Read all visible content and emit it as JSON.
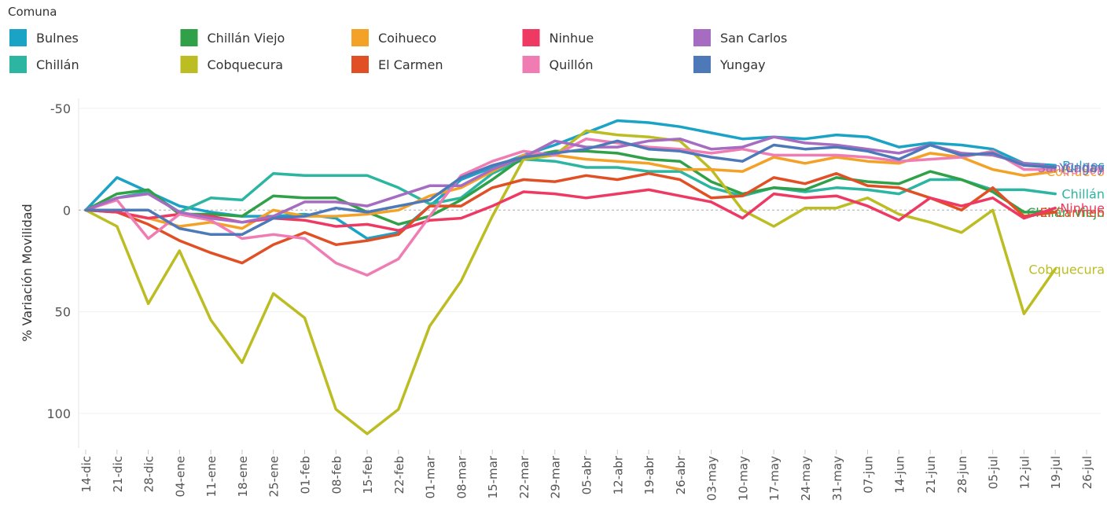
{
  "chart_data": {
    "type": "line",
    "y_label": "% Variación Movilidad",
    "legend_title": "Comuna",
    "legend": "top-left",
    "end_labels": true,
    "grid": true,
    "y_reversed": true,
    "ylim": [
      -55,
      117
    ],
    "yticks": [
      -50,
      0,
      50,
      100
    ],
    "categories": [
      "14-dic",
      "21-dic",
      "28-dic",
      "04-ene",
      "11-ene",
      "18-ene",
      "25-ene",
      "01-feb",
      "08-feb",
      "15-feb",
      "22-feb",
      "01-mar",
      "08-mar",
      "15-mar",
      "22-mar",
      "29-mar",
      "05-abr",
      "12-abr",
      "19-abr",
      "26-abr",
      "03-may",
      "10-may",
      "17-may",
      "24-may",
      "31-may",
      "07-jun",
      "14-jun",
      "21-jun",
      "28-jun",
      "05-jul",
      "12-jul",
      "19-jul",
      "26-jul"
    ],
    "series": [
      {
        "name": "Bulnes",
        "color": "#1ba3c6",
        "values": [
          0,
          -16,
          -9,
          -2,
          1,
          3,
          3,
          2,
          4,
          14,
          11,
          -2,
          -15,
          -21,
          -27,
          -32,
          -38,
          -44,
          -43,
          -41,
          -38,
          -35,
          -36,
          -35,
          -37,
          -36,
          -31,
          -33,
          -32,
          -30,
          -23,
          -22,
          null
        ]
      },
      {
        "name": "Chillán",
        "color": "#2cb5a0",
        "values": [
          0,
          -6,
          -9,
          1,
          -6,
          -5,
          -18,
          -17,
          -17,
          -17,
          -11,
          -3,
          -6,
          -18,
          -25,
          -24,
          -21,
          -21,
          -19,
          -19,
          -11,
          -7,
          -11,
          -9,
          -11,
          -10,
          -8,
          -15,
          -15,
          -10,
          -10,
          -8,
          null
        ]
      },
      {
        "name": "Chillán Viejo",
        "color": "#30a149",
        "values": [
          0,
          -8,
          -10,
          2,
          2,
          3,
          -7,
          -6,
          -6,
          1,
          7,
          3,
          -5,
          -15,
          -26,
          -29,
          -29,
          -28,
          -25,
          -24,
          -14,
          -8,
          -11,
          -10,
          -16,
          -14,
          -13,
          -19,
          -15,
          -9,
          1,
          1,
          null
        ]
      },
      {
        "name": "Cobquecura",
        "color": "#bcbd22",
        "values": [
          0,
          8,
          46,
          20,
          54,
          75,
          41,
          53,
          98,
          110,
          98,
          57,
          35,
          3,
          -25,
          -27,
          -39,
          -37,
          -36,
          -34,
          -20,
          0,
          8,
          -1,
          -1,
          -6,
          2,
          6,
          11,
          0,
          51,
          29,
          null
        ]
      },
      {
        "name": "Coihueco",
        "color": "#f4a227",
        "values": [
          0,
          1,
          4,
          8,
          6,
          9,
          0,
          3,
          3,
          2,
          0,
          -7,
          -11,
          -19,
          -27,
          -27,
          -25,
          -24,
          -23,
          -20,
          -20,
          -19,
          -26,
          -23,
          -26,
          -24,
          -23,
          -28,
          -26,
          -20,
          -17,
          -19,
          null
        ]
      },
      {
        "name": "El Carmen",
        "color": "#e15025",
        "values": [
          0,
          1,
          7,
          15,
          21,
          26,
          17,
          11,
          17,
          15,
          12,
          -2,
          -2,
          -11,
          -15,
          -14,
          -17,
          -15,
          -18,
          -15,
          -6,
          -7,
          -16,
          -13,
          -18,
          -12,
          -11,
          -6,
          0,
          -11,
          3,
          1,
          null
        ]
      },
      {
        "name": "Ninhue",
        "color": "#ee3a63",
        "values": [
          0,
          1,
          4,
          2,
          3,
          6,
          4,
          5,
          8,
          7,
          10,
          5,
          4,
          -2,
          -9,
          -8,
          -6,
          -8,
          -10,
          -7,
          -4,
          4,
          -8,
          -6,
          -7,
          -2,
          5,
          -6,
          -2,
          -6,
          4,
          -1,
          null
        ]
      },
      {
        "name": "Quillón",
        "color": "#f07cb4",
        "values": [
          0,
          -5,
          14,
          2,
          5,
          14,
          12,
          14,
          26,
          32,
          24,
          3,
          -17,
          -24,
          -29,
          -27,
          -35,
          -33,
          -31,
          -30,
          -28,
          -30,
          -27,
          -27,
          -27,
          -26,
          -24,
          -25,
          -26,
          -29,
          -20,
          -20,
          null
        ]
      },
      {
        "name": "San Carlos",
        "color": "#a56cc1",
        "values": [
          0,
          -6,
          -8,
          1,
          4,
          6,
          3,
          -4,
          -4,
          -2,
          -7,
          -12,
          -12,
          -20,
          -26,
          -34,
          -31,
          -31,
          -34,
          -35,
          -30,
          -31,
          -36,
          -33,
          -32,
          -30,
          -28,
          -32,
          -28,
          -27,
          -23,
          -21,
          null
        ]
      },
      {
        "name": "Yungay",
        "color": "#4e79b9",
        "values": [
          0,
          0,
          0,
          9,
          12,
          12,
          4,
          3,
          -1,
          1,
          -2,
          -5,
          -16,
          -22,
          -26,
          -28,
          -30,
          -34,
          -30,
          -29,
          -26,
          -24,
          -32,
          -30,
          -31,
          -29,
          -25,
          -32,
          -27,
          -28,
          -22,
          -21,
          null
        ]
      }
    ]
  }
}
